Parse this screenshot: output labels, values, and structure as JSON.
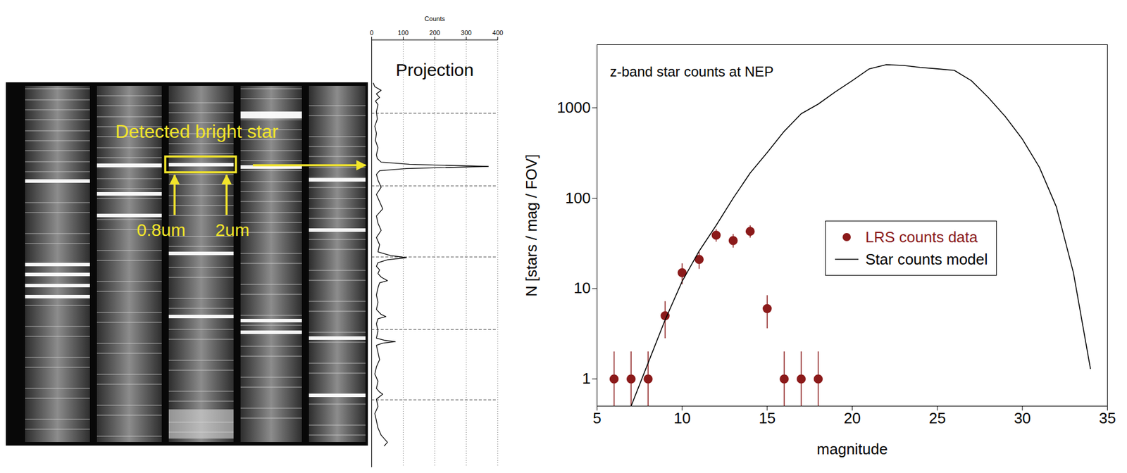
{
  "chart_data": [
    {
      "type": "image",
      "annotations": {
        "box": "Detected bright star",
        "left_arrow": "0.8um",
        "right_arrow": "2um"
      }
    },
    {
      "type": "line",
      "title": "Projection",
      "x_label": "Counts",
      "orientation": "horizontal",
      "y": [
        0,
        5,
        10,
        15,
        20,
        25,
        30,
        40,
        50,
        60,
        70,
        80,
        90,
        100,
        105,
        110,
        113,
        116,
        119,
        122,
        127,
        135,
        145,
        155,
        165,
        175,
        185,
        195,
        205,
        215,
        225,
        235,
        240,
        243,
        246,
        250,
        255,
        260,
        265,
        270,
        275,
        278,
        285,
        295,
        305,
        315,
        322,
        325,
        328,
        335,
        345,
        355,
        358,
        360,
        362,
        365,
        375,
        385,
        395,
        405,
        415,
        425,
        430,
        433,
        440,
        450,
        460,
        470,
        480,
        490,
        500,
        505
      ],
      "values": [
        5,
        10,
        30,
        15,
        25,
        12,
        20,
        15,
        18,
        10,
        15,
        12,
        20,
        15,
        18,
        30,
        120,
        370,
        110,
        25,
        15,
        20,
        30,
        15,
        25,
        35,
        15,
        20,
        30,
        15,
        25,
        20,
        60,
        110,
        50,
        20,
        15,
        25,
        20,
        30,
        50,
        25,
        20,
        15,
        20,
        15,
        30,
        45,
        20,
        15,
        20,
        15,
        40,
        75,
        35,
        15,
        20,
        25,
        15,
        10,
        20,
        15,
        25,
        35,
        15,
        20,
        10,
        15,
        20,
        30,
        50,
        40
      ],
      "xlim": [
        0,
        400
      ],
      "xticks": [
        0,
        100,
        200,
        300,
        400
      ],
      "ylim": [
        -60,
        535
      ],
      "yticks": [
        42,
        143,
        242,
        343,
        441
      ],
      "grid": true,
      "tick_labels": "x",
      "color": "#000000"
    },
    {
      "type": "scatter",
      "title": "z-band star counts at NEP",
      "x_label": "magnitude",
      "y_label": "N [stars / mag / FOV]",
      "log": "y",
      "xlim": [
        5,
        35
      ],
      "xticks": [
        5,
        10,
        15,
        20,
        25,
        30,
        35
      ],
      "ylim": [
        0.5,
        5000
      ],
      "yticks": [
        1,
        10,
        100,
        1000
      ],
      "legend": "center right",
      "series": [
        {
          "name": "LRS counts data",
          "type": "scatter",
          "color": "#8b1a1a",
          "marker": "circle",
          "x": [
            6,
            7,
            8,
            9,
            10,
            11,
            12,
            13,
            14,
            15,
            16,
            17,
            18
          ],
          "values": [
            1,
            1,
            1,
            5,
            15,
            21,
            39,
            34,
            43,
            6,
            1,
            1,
            1
          ],
          "errors": [
            1,
            1,
            1,
            2.2,
            3.9,
            4.6,
            6.2,
            5.8,
            6.6,
            2.4,
            1,
            1,
            1
          ]
        },
        {
          "name": "Star counts model",
          "type": "line",
          "color": "#000000",
          "line_style": "solid",
          "x": [
            7,
            8,
            9,
            10,
            11,
            12,
            13,
            14,
            15,
            16,
            17,
            18,
            19,
            20,
            21,
            22,
            23,
            24,
            25,
            26,
            27,
            28,
            29,
            30,
            31,
            32,
            33,
            34
          ],
          "values": [
            0.5,
            1.5,
            4.5,
            12,
            26,
            50,
            100,
            190,
            320,
            550,
            860,
            1100,
            1500,
            2000,
            2700,
            3000,
            2950,
            2800,
            2700,
            2600,
            2000,
            1300,
            800,
            450,
            220,
            80,
            15,
            1.3
          ]
        }
      ]
    }
  ]
}
